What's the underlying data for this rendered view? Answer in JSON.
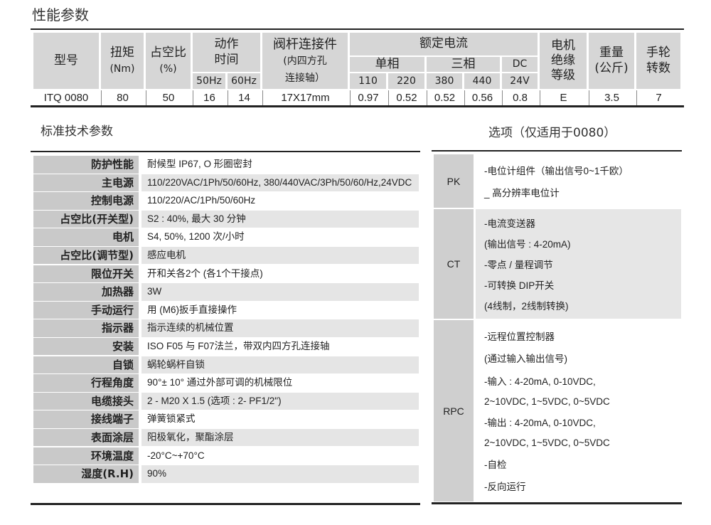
{
  "performance": {
    "title": "性能参数",
    "headers": {
      "model": "型号",
      "torque": "扭矩",
      "torque_unit": "(Nm)",
      "duty": "占空比",
      "duty_unit": "(%)",
      "action_time": "动作\n时间",
      "hz50": "50Hz",
      "hz60": "60Hz",
      "stem": "阀杆连接件",
      "stem_sub1": "(内四方孔",
      "stem_sub2": "连接轴）",
      "rated_current": "额定电流",
      "single_phase": "单相",
      "three_phase": "三相",
      "dc": "DC",
      "v110": "110",
      "v220": "220",
      "v380": "380",
      "v440": "440",
      "v24": "24V",
      "insulation": "电机\n绝缘\n等级",
      "weight": "重量\n(公斤)",
      "handwheel": "手轮\n转数"
    },
    "row": [
      "ITQ 0080",
      "80",
      "50",
      "16",
      "14",
      "17X17mm",
      "0.97",
      "0.52",
      "0.52",
      "0.56",
      "0.8",
      "E",
      "3.5",
      "7"
    ]
  },
  "standard": {
    "title": "标准技术参数",
    "rows": [
      {
        "label": "防护性能",
        "value": "耐候型  IP67, O 形圈密封"
      },
      {
        "label": "主电源",
        "value": "110/220VAC/1Ph/50/60Hz, 380/440VAC/3Ph/50/60/Hz,24VDC"
      },
      {
        "label": "控制电源",
        "value": "110/220/AC/1Ph/50/60Hz"
      },
      {
        "label": "占空比(开关型)",
        "value": "S2 : 40%, 最大 30 分钟"
      },
      {
        "label": "电机",
        "value": "S4, 50%, 1200 次/小时"
      },
      {
        "label": "占空比(调节型)",
        "value": "感应电机"
      },
      {
        "label": "限位开关",
        "value": "开和关各2个 (各1个干接点)"
      },
      {
        "label": "加热器",
        "value": "3W"
      },
      {
        "label": "手动运行",
        "value": "用 (M6)扳手直接操作"
      },
      {
        "label": "指示器",
        "value": "指示连续的机械位置"
      },
      {
        "label": "安装",
        "value": "ISO F05 与 F07法兰，带双内四方孔连接轴"
      },
      {
        "label": "自锁",
        "value": "蜗轮蜗杆自锁"
      },
      {
        "label": "行程角度",
        "value": "90°± 10° 通过外部可调的机械限位"
      },
      {
        "label": "电缆接头",
        "value": "2 - M20 X 1.5 (选项 : 2- PF1/2\")"
      },
      {
        "label": "接线端子",
        "value": "弹簧锁紧式"
      },
      {
        "label": "表面涂层",
        "value": "阳极氧化，聚酯涂层"
      },
      {
        "label": "环境温度",
        "value": "-20°C~+70°C"
      },
      {
        "label": "湿度(R.H)",
        "value": "90%"
      }
    ]
  },
  "options": {
    "title": "选项（仅适用于0080）",
    "items": [
      {
        "label": "PK",
        "lines": [
          "-电位计组件（输出信号0~1千欧）",
          "_ 高分辨率电位计"
        ]
      },
      {
        "label": "CT",
        "lines": [
          "-电流变送器",
          "(输出信号 : 4-20mA)",
          "-零点 / 量程调节",
          "-可转换 DIP开关",
          "(4线制，2线制转换)"
        ]
      },
      {
        "label": "RPC",
        "lines": [
          "-远程位置控制器",
          "(通过输入输出信号)",
          "-输入 : 4-20mA, 0-10VDC,",
          "2~10VDC, 1~5VDC, 0~5VDC",
          "-输出 : 4-20mA, 0-10VDC,",
          "2~10VDC, 1~5VDC, 0~5VDC",
          "-自检",
          "-反向运行"
        ]
      }
    ]
  }
}
